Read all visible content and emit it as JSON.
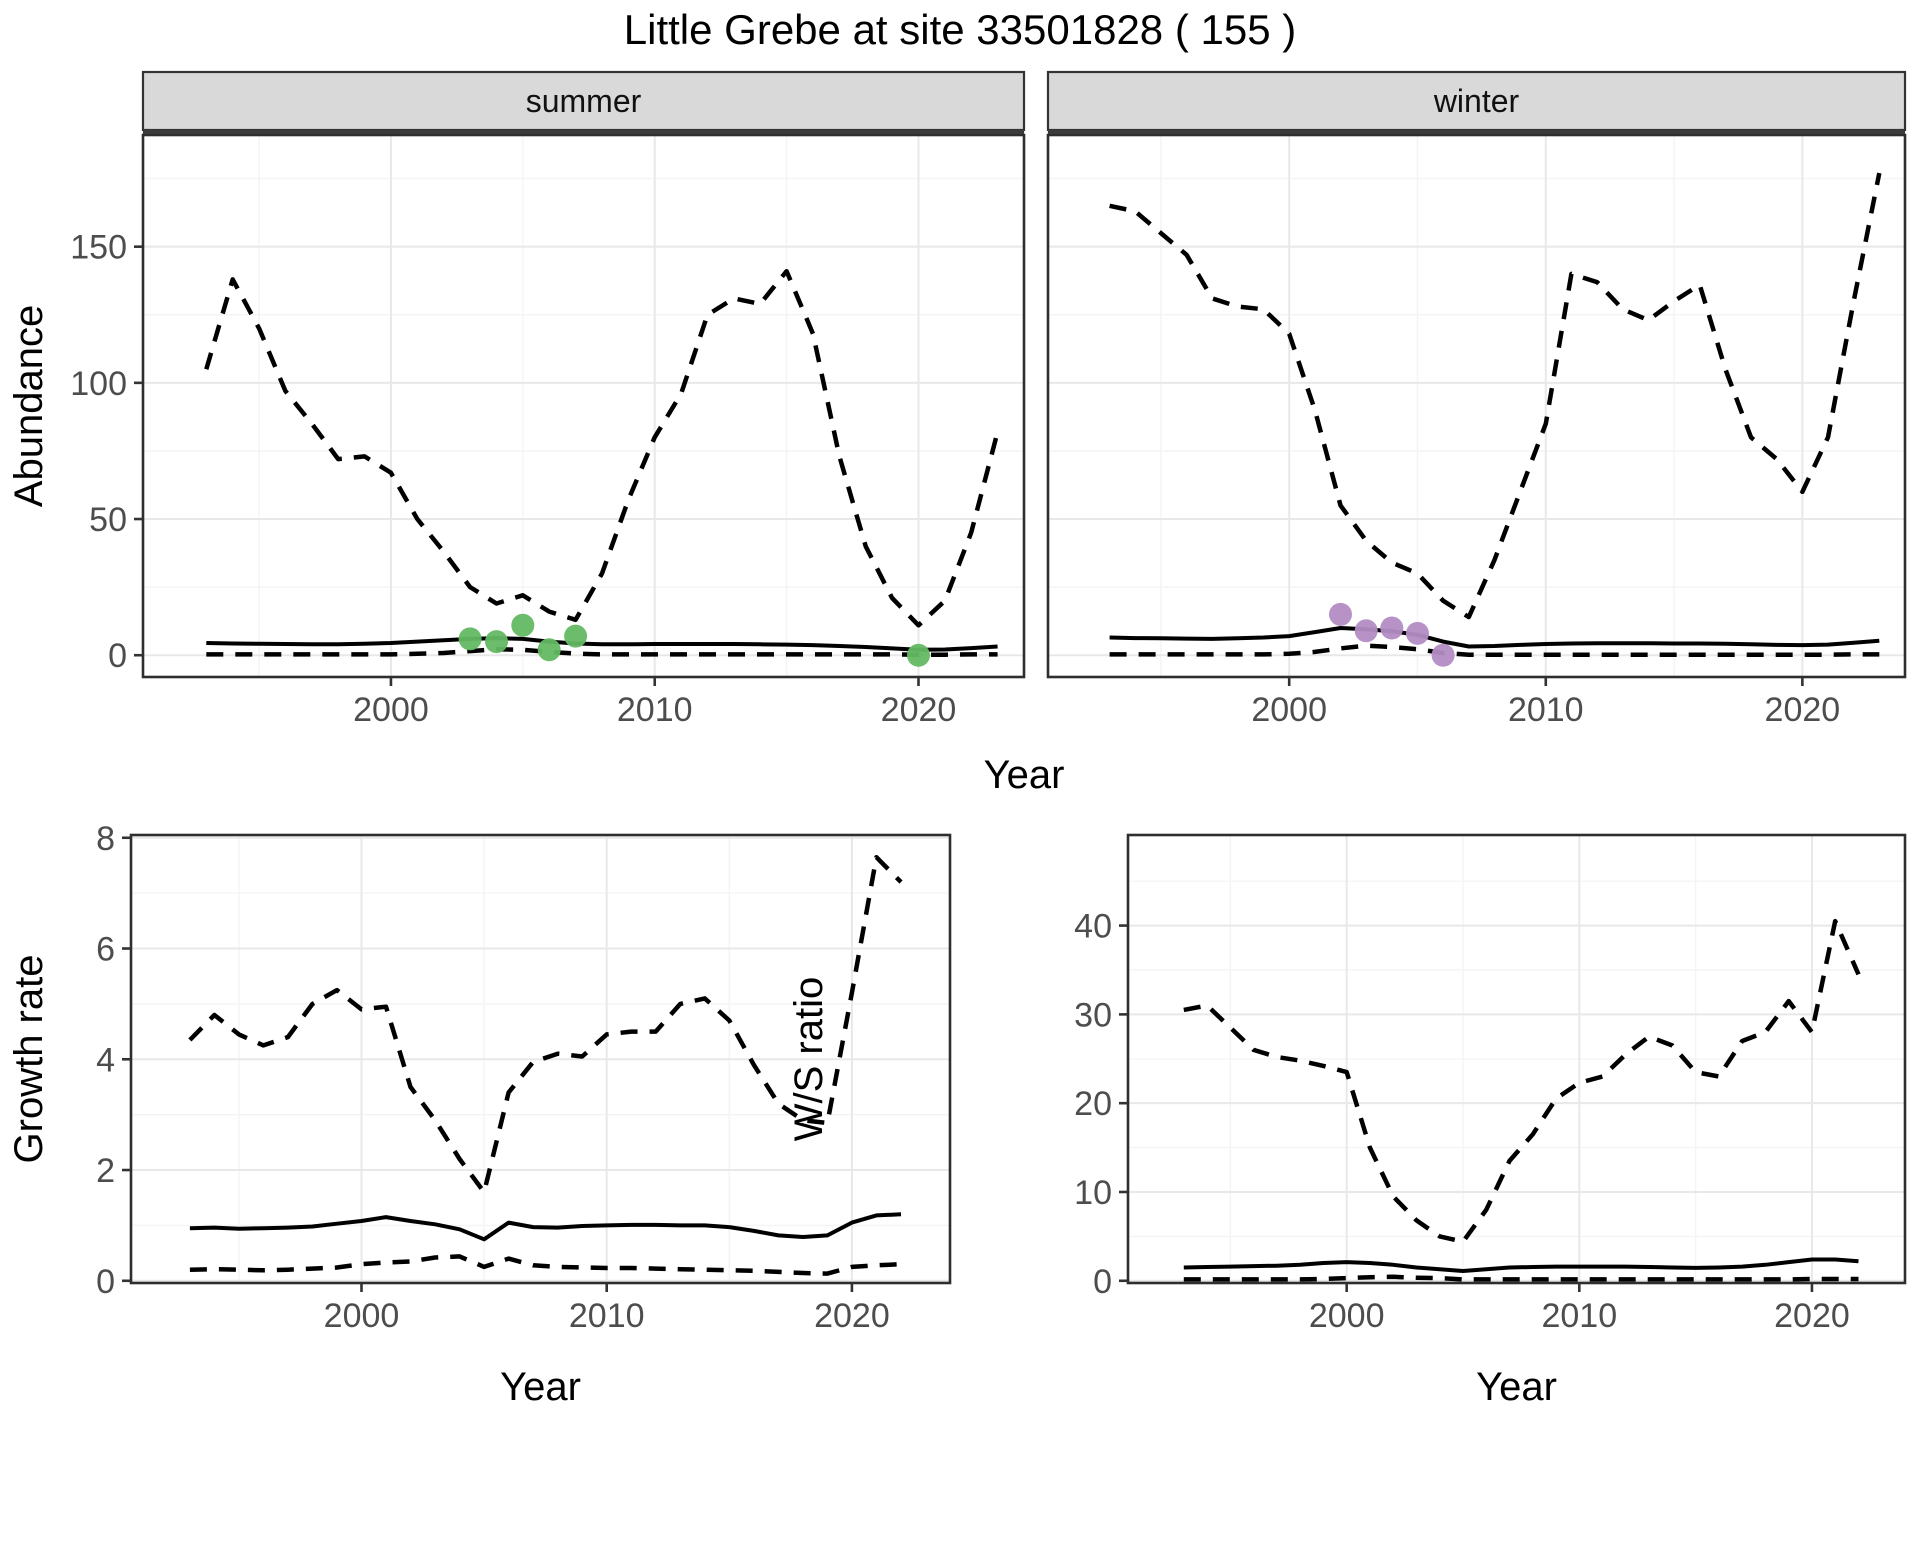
{
  "title": "Little Grebe at site 33501828 ( 155 )",
  "axes": {
    "top_y_label": "Abundance",
    "top_x_label": "Year",
    "growth_y_label": "Growth rate",
    "growth_x_label": "Year",
    "ws_y_label": "W/S ratio",
    "ws_x_label": "Year"
  },
  "colors": {
    "summer_points": "#63b963",
    "winter_points": "#b28cc3",
    "line": "#000000",
    "strip_bg": "#d9d9d9",
    "strip_border": "#333333",
    "panel_border": "#2e2e2e",
    "grid_major": "#e8e8e8",
    "grid_minor": "#f4f4f4",
    "tick_text": "#4d4d4d",
    "axis_title": "#000000"
  },
  "chart_data": [
    {
      "type": "line",
      "panel": "summer",
      "title": "summer",
      "xlabel": "Year",
      "ylabel": "Abundance",
      "xlim": [
        1990.6,
        2024.0
      ],
      "ylim": [
        -8,
        191
      ],
      "xticks": [
        2000,
        2010,
        2020
      ],
      "xminor": [
        1995,
        2005,
        2015
      ],
      "yticks": [
        0,
        50,
        100,
        150
      ],
      "yminor": [
        25,
        75,
        125,
        175
      ],
      "years": [
        1993,
        1994,
        1995,
        1996,
        1997,
        1998,
        1999,
        2000,
        2001,
        2002,
        2003,
        2004,
        2005,
        2006,
        2007,
        2008,
        2009,
        2010,
        2011,
        2012,
        2013,
        2014,
        2015,
        2016,
        2017,
        2018,
        2019,
        2020,
        2021,
        2022,
        2023
      ],
      "series": [
        {
          "name": "upper_bound",
          "style": "dashed",
          "values": [
            105,
            138,
            120,
            97,
            85,
            72,
            73,
            67,
            50,
            38,
            25,
            19,
            22,
            16,
            13,
            30,
            57,
            80,
            96,
            125,
            131,
            129,
            141,
            118,
            73,
            40,
            21,
            11,
            20,
            45,
            82
          ]
        },
        {
          "name": "median",
          "style": "solid",
          "values": [
            4.5,
            4.3,
            4.2,
            4.1,
            4.0,
            4.0,
            4.2,
            4.5,
            5.0,
            5.5,
            6.0,
            6.3,
            6.0,
            5.0,
            4.3,
            4.0,
            4.0,
            4.1,
            4.1,
            4.1,
            4.1,
            4.0,
            3.9,
            3.7,
            3.4,
            3.0,
            2.5,
            2.0,
            2.1,
            2.6,
            3.2
          ]
        },
        {
          "name": "lower_bound",
          "style": "dashed",
          "values": [
            0.3,
            0.3,
            0.3,
            0.3,
            0.3,
            0.3,
            0.3,
            0.3,
            0.5,
            0.8,
            1.5,
            2.2,
            2.0,
            1.2,
            0.6,
            0.3,
            0.3,
            0.3,
            0.3,
            0.3,
            0.3,
            0.3,
            0.3,
            0.3,
            0.3,
            0.3,
            0.3,
            0.2,
            0.2,
            0.3,
            0.3
          ]
        }
      ],
      "points": {
        "name": "observed-counts-summer",
        "color": "#63b963",
        "x": [
          2003,
          2004,
          2005,
          2006,
          2007,
          2020
        ],
        "y": [
          6,
          5,
          11,
          2,
          7,
          0
        ]
      }
    },
    {
      "type": "line",
      "panel": "winter",
      "title": "winter",
      "xlabel": "Year",
      "ylabel": "Abundance",
      "xlim": [
        1990.6,
        2024.0
      ],
      "ylim": [
        -8,
        191
      ],
      "xticks": [
        2000,
        2010,
        2020
      ],
      "xminor": [
        1995,
        2005,
        2015
      ],
      "yticks": [
        0,
        50,
        100,
        150
      ],
      "yminor": [
        25,
        75,
        125,
        175
      ],
      "years": [
        1993,
        1994,
        1995,
        1996,
        1997,
        1998,
        1999,
        2000,
        2001,
        2002,
        2003,
        2004,
        2005,
        2006,
        2007,
        2008,
        2009,
        2010,
        2011,
        2012,
        2013,
        2014,
        2015,
        2016,
        2017,
        2018,
        2019,
        2020,
        2021,
        2022,
        2023
      ],
      "series": [
        {
          "name": "upper_bound",
          "style": "dashed",
          "values": [
            165,
            163,
            155,
            147,
            131,
            128,
            127,
            118,
            90,
            55,
            42,
            34,
            30,
            20,
            14,
            35,
            60,
            85,
            140,
            137,
            127,
            123,
            130,
            136,
            105,
            80,
            72,
            60,
            80,
            130,
            177
          ]
        },
        {
          "name": "median",
          "style": "solid",
          "values": [
            6.5,
            6.3,
            6.2,
            6.1,
            6.0,
            6.2,
            6.5,
            7.0,
            8.5,
            10.0,
            9.5,
            8.8,
            7.5,
            5.0,
            3.2,
            3.4,
            3.8,
            4.1,
            4.3,
            4.4,
            4.4,
            4.4,
            4.3,
            4.3,
            4.2,
            4.0,
            3.8,
            3.7,
            3.9,
            4.6,
            5.3
          ]
        },
        {
          "name": "lower_bound",
          "style": "dashed",
          "values": [
            0.3,
            0.3,
            0.3,
            0.3,
            0.3,
            0.3,
            0.3,
            0.5,
            1.2,
            2.5,
            3.5,
            3.0,
            2.2,
            0.8,
            0.2,
            0.2,
            0.2,
            0.2,
            0.2,
            0.2,
            0.2,
            0.2,
            0.2,
            0.2,
            0.2,
            0.2,
            0.2,
            0.2,
            0.2,
            0.3,
            0.3
          ]
        }
      ],
      "points": {
        "name": "observed-counts-winter",
        "color": "#b28cc3",
        "x": [
          2002,
          2003,
          2004,
          2005,
          2006
        ],
        "y": [
          15,
          9,
          10,
          8,
          0
        ]
      }
    },
    {
      "type": "line",
      "panel": "growth",
      "title": "",
      "xlabel": "Year",
      "ylabel": "Growth rate",
      "xlim": [
        1990.6,
        2024.0
      ],
      "ylim": [
        -0.04,
        8.05
      ],
      "xticks": [
        2000,
        2010,
        2020
      ],
      "xminor": [
        1995,
        2005,
        2015
      ],
      "yticks": [
        0,
        2,
        4,
        6,
        8
      ],
      "yminor": [
        1,
        3,
        5,
        7
      ],
      "years": [
        1993,
        1994,
        1995,
        1996,
        1997,
        1998,
        1999,
        2000,
        2001,
        2002,
        2003,
        2004,
        2005,
        2006,
        2007,
        2008,
        2009,
        2010,
        2011,
        2012,
        2013,
        2014,
        2015,
        2016,
        2017,
        2018,
        2019,
        2020,
        2021,
        2022
      ],
      "series": [
        {
          "name": "upper_bound",
          "style": "dashed",
          "values": [
            4.35,
            4.8,
            4.45,
            4.25,
            4.4,
            5.0,
            5.25,
            4.9,
            4.95,
            3.5,
            2.9,
            2.2,
            1.6,
            3.4,
            3.95,
            4.1,
            4.05,
            4.45,
            4.5,
            4.5,
            5.0,
            5.1,
            4.7,
            3.9,
            3.2,
            2.9,
            2.85,
            5.2,
            7.65,
            7.2
          ]
        },
        {
          "name": "median",
          "style": "solid",
          "values": [
            0.95,
            0.96,
            0.94,
            0.95,
            0.96,
            0.98,
            1.03,
            1.08,
            1.15,
            1.08,
            1.02,
            0.93,
            0.75,
            1.05,
            0.97,
            0.96,
            0.99,
            1.0,
            1.01,
            1.01,
            1.0,
            1.0,
            0.97,
            0.9,
            0.82,
            0.79,
            0.82,
            1.05,
            1.18,
            1.2
          ]
        },
        {
          "name": "lower_bound",
          "style": "dashed",
          "values": [
            0.2,
            0.21,
            0.2,
            0.19,
            0.2,
            0.22,
            0.24,
            0.3,
            0.33,
            0.35,
            0.42,
            0.44,
            0.25,
            0.4,
            0.28,
            0.25,
            0.24,
            0.23,
            0.23,
            0.22,
            0.21,
            0.2,
            0.19,
            0.18,
            0.16,
            0.14,
            0.13,
            0.25,
            0.28,
            0.3
          ]
        }
      ]
    },
    {
      "type": "line",
      "panel": "ws",
      "title": "",
      "xlabel": "Year",
      "ylabel": "W/S ratio",
      "xlim": [
        1990.6,
        2024.0
      ],
      "ylim": [
        -0.25,
        50.2
      ],
      "xticks": [
        2000,
        2010,
        2020
      ],
      "xminor": [
        1995,
        2005,
        2015
      ],
      "yticks": [
        0,
        10,
        20,
        30,
        40
      ],
      "yminor": [
        5,
        15,
        25,
        35,
        45
      ],
      "years": [
        1993,
        1994,
        1995,
        1996,
        1997,
        1998,
        1999,
        2000,
        2001,
        2002,
        2003,
        2004,
        2005,
        2006,
        2007,
        2008,
        2009,
        2010,
        2011,
        2012,
        2013,
        2014,
        2015,
        2016,
        2017,
        2018,
        2019,
        2020,
        2021,
        2022
      ],
      "series": [
        {
          "name": "upper_bound",
          "style": "dashed",
          "values": [
            30.5,
            31.0,
            28.5,
            26.0,
            25.2,
            24.8,
            24.2,
            23.5,
            15.0,
            9.5,
            6.8,
            5.0,
            4.4,
            8.0,
            13.5,
            16.5,
            20.5,
            22.3,
            23.0,
            25.5,
            27.5,
            26.5,
            23.5,
            23.0,
            27.0,
            28.0,
            31.5,
            28.0,
            40.5,
            34.5
          ]
        },
        {
          "name": "median",
          "style": "solid",
          "values": [
            1.5,
            1.55,
            1.6,
            1.65,
            1.7,
            1.8,
            2.0,
            2.1,
            2.0,
            1.8,
            1.5,
            1.3,
            1.1,
            1.3,
            1.5,
            1.55,
            1.6,
            1.6,
            1.6,
            1.6,
            1.55,
            1.5,
            1.45,
            1.5,
            1.6,
            1.8,
            2.1,
            2.4,
            2.4,
            2.2
          ]
        },
        {
          "name": "lower_bound",
          "style": "dashed",
          "values": [
            0.15,
            0.15,
            0.15,
            0.15,
            0.15,
            0.15,
            0.2,
            0.3,
            0.4,
            0.45,
            0.35,
            0.3,
            0.15,
            0.15,
            0.15,
            0.15,
            0.15,
            0.15,
            0.15,
            0.15,
            0.15,
            0.15,
            0.15,
            0.15,
            0.15,
            0.15,
            0.15,
            0.2,
            0.2,
            0.2
          ]
        }
      ]
    }
  ]
}
